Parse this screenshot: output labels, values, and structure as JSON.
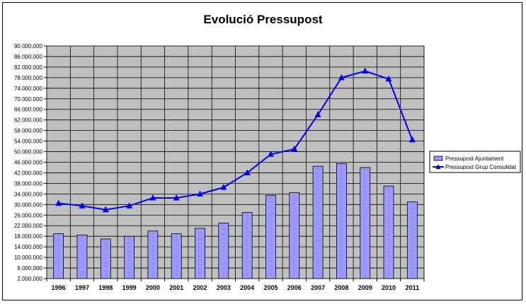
{
  "chart_data": {
    "type": "bar",
    "title": "Evolució Pressupost",
    "categories": [
      "1996",
      "1997",
      "1998",
      "1999",
      "2000",
      "2001",
      "2002",
      "2003",
      "2004",
      "2005",
      "2006",
      "2007",
      "2008",
      "2009",
      "2010",
      "2011"
    ],
    "series": [
      {
        "name": "Pressupost Ajuntament",
        "type": "bar",
        "values": [
          19000000,
          18500000,
          17000000,
          18000000,
          20000000,
          19000000,
          21000000,
          23000000,
          27000000,
          33500000,
          34500000,
          44500000,
          45500000,
          44000000,
          37000000,
          31000000
        ]
      },
      {
        "name": "Pressupost Grup Consolidat",
        "type": "line",
        "values": [
          30500000,
          29500000,
          28000000,
          29500000,
          32500000,
          32500000,
          34000000,
          36500000,
          42000000,
          49000000,
          51000000,
          64000000,
          78000000,
          80500000,
          77500000,
          54500000
        ]
      }
    ],
    "ylim": [
      2000000,
      90000000
    ],
    "yticks": [
      "2.000.000",
      "6.000.000",
      "10.000.000",
      "14.000.000",
      "18.000.000",
      "22.000.000",
      "26.000.000",
      "30.000.000",
      "34.000.000",
      "38.000.000",
      "42.000.000",
      "46.000.000",
      "50.000.000",
      "54.000.000",
      "58.000.000",
      "62.000.000",
      "66.000.000",
      "70.000.000",
      "74.000.000",
      "78.000.000",
      "82.000.000",
      "86.000.000",
      "90.000.000"
    ],
    "grid": true,
    "legend": "right",
    "colors": {
      "plot_bg": "#c0c0c0",
      "bar_fill": "#9999ff",
      "line": "#0000ff"
    }
  }
}
